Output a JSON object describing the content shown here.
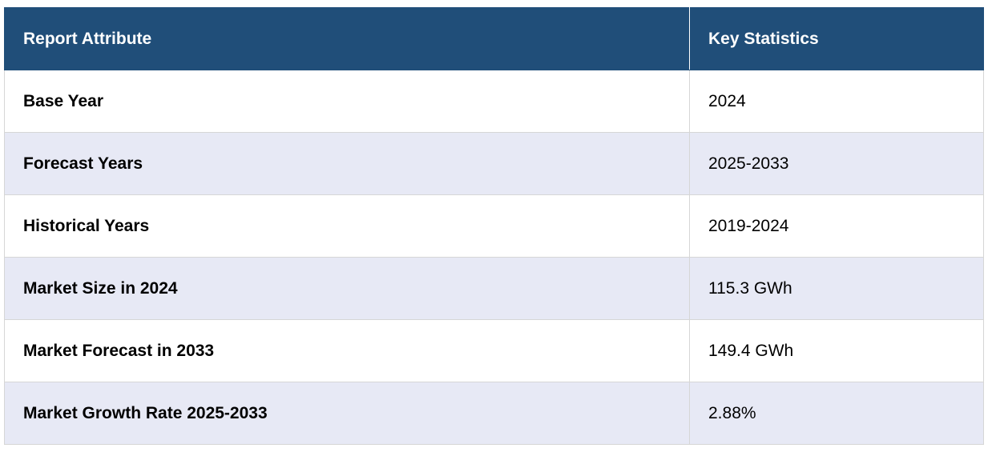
{
  "table": {
    "headers": [
      "Report Attribute",
      "Key Statistics"
    ],
    "rows": [
      {
        "attribute": "Base Year",
        "value": "2024"
      },
      {
        "attribute": "Forecast Years",
        "value": "2025-2033"
      },
      {
        "attribute": "Historical Years",
        "value": "2019-2024"
      },
      {
        "attribute": "Market Size in 2024",
        "value": "115.3 GWh"
      },
      {
        "attribute": "Market Forecast in 2033",
        "value": "149.4 GWh"
      },
      {
        "attribute": "Market Growth Rate 2025-2033",
        "value": "2.88%"
      }
    ]
  },
  "colors": {
    "header_bg": "#204e79",
    "header_text": "#ffffff",
    "row_alt_bg": "#e7e9f5",
    "border": "#d6d6d6"
  }
}
